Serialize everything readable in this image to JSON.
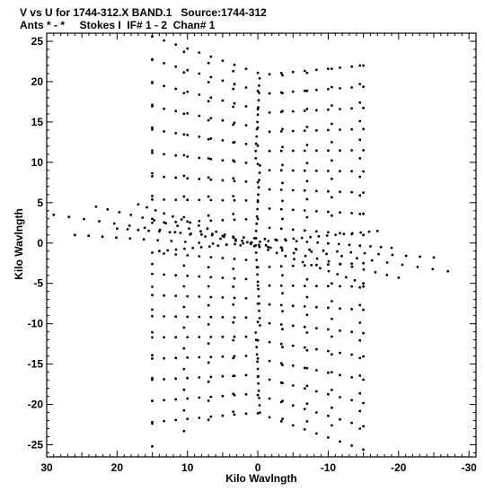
{
  "chart_data": {
    "type": "scatter",
    "title_line1": "V vs U for 1744-312.X BAND.1   Source:1744-312",
    "title_line2": "Ants * - *     Stokes I  IF# 1 - 2  Chan# 1",
    "xlabel": "Kilo Wavlngth",
    "ylabel": "Kilo Wavlngth",
    "xlim": [
      30,
      -31
    ],
    "ylim": [
      -26.5,
      26
    ],
    "x_ticks": [
      30,
      20,
      10,
      0,
      -10,
      -20,
      -30
    ],
    "y_ticks": [
      25,
      20,
      15,
      10,
      5,
      0,
      -5,
      -10,
      -15,
      -20,
      -25
    ],
    "grid": false,
    "marker_color": "#000000",
    "tracks_a": {
      "u_start": [
        15.0,
        13.5,
        11.5,
        9.5,
        7.5,
        5.5,
        3.5,
        1.5
      ],
      "u_end": [
        -1.0,
        -2.5,
        -4.5,
        -6.5,
        -8.5,
        -10.5,
        -12.5,
        -14.8
      ],
      "v_start": 25.6,
      "v_end": 21.4,
      "v_mid": 20.2,
      "steps": [
        0,
        2.8,
        6.2,
        9.6,
        13.0,
        16.4,
        19.8,
        22.8,
        24.3
      ]
    },
    "central_line": {
      "u": [
        0.5,
        0.4,
        0.3,
        0.2,
        0.1,
        0.0,
        -0.1,
        -0.2,
        -0.3,
        -0.4,
        -0.5
      ]
    },
    "arms": [
      {
        "name_hidden": "",
        "u0": 29.0,
        "v0": 3.5,
        "u1": -27.0,
        "v1": -3.5
      },
      {
        "name_hidden": "",
        "u0": 26.0,
        "v0": 1.0,
        "u1": -25.0,
        "v1": -1.8
      },
      {
        "name_hidden": "",
        "u0": 23.0,
        "v0": 4.5,
        "u1": -20.0,
        "v1": -4.3
      },
      {
        "name_hidden": "",
        "u0": 20.0,
        "v0": 1.8,
        "u1": -19.0,
        "v1": -0.6
      },
      {
        "name_hidden": "",
        "u0": 17.0,
        "v0": 4.8,
        "u1": -15.0,
        "v1": -5.0
      },
      {
        "name_hidden": "",
        "u0": 14.0,
        "v0": -1.0,
        "u1": -17.0,
        "v1": 1.5
      }
    ]
  }
}
